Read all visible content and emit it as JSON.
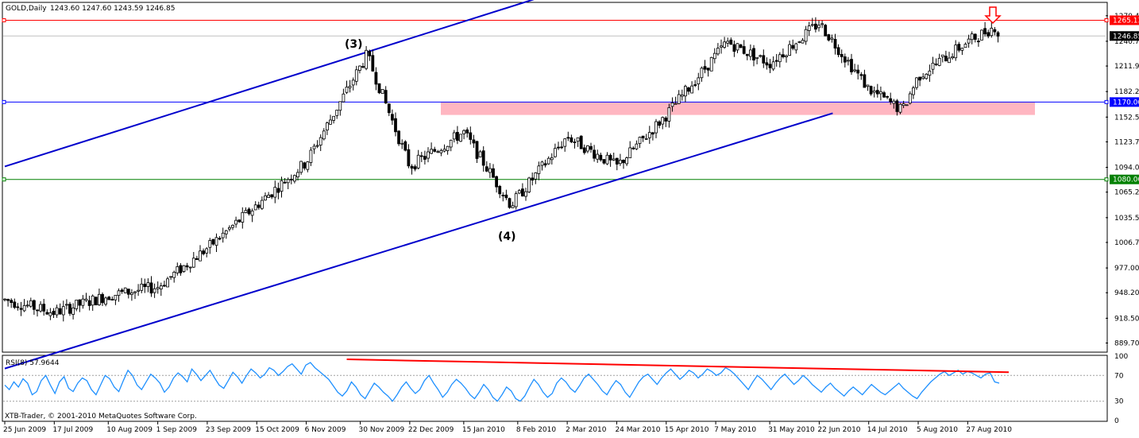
{
  "header": {
    "symbol": "GOLD,Daily",
    "ohlc": "1243.60 1247.60 1243.59 1246.85"
  },
  "rsi_header": {
    "label": "RSI(8) 57.9644"
  },
  "copyright": "XTB-Trader, © 2001-2010 MetaQuotes Software Corp.",
  "annotations": {
    "wave3": "(3)",
    "wave4": "(4)"
  },
  "colors": {
    "channel": "#0000cc",
    "resistance_line": "#ff0000",
    "support_line": "#0000ff",
    "low_line": "#008000",
    "zone": "#ffb6c1",
    "rsi_line": "#1e90ff",
    "rsi_trend": "#ff0000",
    "arrow": "#ff0000",
    "price_tag_current": "#000000"
  },
  "chart_data": [
    {
      "type": "candlestick",
      "title": "GOLD,Daily",
      "ylim": [
        880,
        1285
      ],
      "y_ticks": [
        "1270.40",
        "1240.70",
        "1211.90",
        "1182.20",
        "1152.50",
        "1123.70",
        "1094.00",
        "1065.20",
        "1035.50",
        "1006.70",
        "977.00",
        "948.20",
        "918.50",
        "889.70"
      ],
      "x_ticks": [
        "25 Jun 2009",
        "17 Jul 2009",
        "10 Aug 2009",
        "1 Sep 2009",
        "23 Sep 2009",
        "15 Oct 2009",
        "6 Nov 2009",
        "30 Nov 2009",
        "22 Dec 2009",
        "15 Jan 2010",
        "8 Feb 2010",
        "2 Mar 2010",
        "24 Mar 2010",
        "15 Apr 2010",
        "7 May 2010",
        "31 May 2010",
        "22 Jun 2010",
        "14 Jul 2010",
        "5 Aug 2010",
        "27 Aug 2010"
      ],
      "price_levels": [
        {
          "name": "resistance",
          "value": 1265.13,
          "label": "1265.13"
        },
        {
          "name": "current",
          "value": 1246.85,
          "label": "1246.85"
        },
        {
          "name": "support",
          "value": 1170.0,
          "label": "1170.00"
        },
        {
          "name": "low",
          "value": 1080.0,
          "label": "1080.00"
        }
      ],
      "zone": {
        "from": 1155,
        "to": 1170
      },
      "channel_upper": [
        {
          "date": "25 Jun 2009",
          "value": 1095
        },
        {
          "date": "24 Nov 2009",
          "value": 1230
        },
        {
          "date": "12 Mar 2010",
          "value": 1310
        }
      ],
      "channel_lower": [
        {
          "date": "25 Jun 2009",
          "value": 860
        },
        {
          "date": "4 Feb 2010",
          "value": 1042
        },
        {
          "date": "28 Jun 2010",
          "value": 1157
        }
      ],
      "key_points": [
        {
          "date": "25 Jun 2009",
          "value": 940
        },
        {
          "date": "17 Jul 2009",
          "value": 925
        },
        {
          "date": "10 Aug 2009",
          "value": 945
        },
        {
          "date": "1 Sep 2009",
          "value": 955
        },
        {
          "date": "23 Sep 2009",
          "value": 1000
        },
        {
          "date": "15 Oct 2009",
          "value": 1050
        },
        {
          "date": "6 Nov 2009",
          "value": 1100
        },
        {
          "date": "3 Dec 2009",
          "value": 1225
        },
        {
          "date": "22 Dec 2009",
          "value": 1095
        },
        {
          "date": "15 Jan 2010",
          "value": 1135
        },
        {
          "date": "5 Feb 2010",
          "value": 1050
        },
        {
          "date": "2 Mar 2010",
          "value": 1130
        },
        {
          "date": "24 Mar 2010",
          "value": 1095
        },
        {
          "date": "15 Apr 2010",
          "value": 1155
        },
        {
          "date": "12 May 2010",
          "value": 1240
        },
        {
          "date": "31 May 2010",
          "value": 1215
        },
        {
          "date": "22 Jun 2010",
          "value": 1262
        },
        {
          "date": "14 Jul 2010",
          "value": 1185
        },
        {
          "date": "29 Jul 2010",
          "value": 1160
        },
        {
          "date": "5 Aug 2010",
          "value": 1200
        },
        {
          "date": "27 Aug 2010",
          "value": 1240
        },
        {
          "date": "8 Sep 2010",
          "value": 1258
        },
        {
          "date": "10 Sep 2010",
          "value": 1246.85
        }
      ]
    },
    {
      "type": "line",
      "title": "RSI(8) 57.9644",
      "ylim": [
        0,
        100
      ],
      "y_ticks": [
        "100",
        "70",
        "30",
        "0"
      ],
      "levels": [
        70,
        30
      ],
      "series": [
        {
          "values": [
            55,
            48,
            60,
            52,
            65,
            58,
            40,
            45,
            62,
            70,
            55,
            42,
            60,
            68,
            50,
            45,
            58,
            66,
            62,
            48,
            40,
            55,
            70,
            65,
            52,
            45,
            62,
            78,
            70,
            55,
            48,
            60,
            72,
            66,
            58,
            44,
            52,
            66,
            74,
            68,
            60,
            80,
            72,
            62,
            70,
            78,
            66,
            55,
            50,
            62,
            75,
            68,
            58,
            70,
            80,
            74,
            66,
            72,
            82,
            78,
            70,
            76,
            84,
            88,
            80,
            72,
            86,
            90,
            82,
            76,
            70,
            64,
            54,
            44,
            38,
            46,
            60,
            52,
            40,
            34,
            46,
            58,
            52,
            44,
            38,
            30,
            40,
            52,
            60,
            50,
            42,
            48,
            62,
            70,
            58,
            48,
            36,
            44,
            56,
            64,
            58,
            50,
            40,
            34,
            44,
            56,
            48,
            36,
            30,
            40,
            52,
            46,
            34,
            30,
            38,
            52,
            64,
            56,
            44,
            36,
            42,
            58,
            66,
            60,
            50,
            44,
            54,
            66,
            72,
            64,
            56,
            46,
            40,
            52,
            62,
            56,
            44,
            36,
            48,
            60,
            68,
            72,
            64,
            56,
            66,
            74,
            80,
            72,
            64,
            70,
            78,
            74,
            66,
            72,
            80,
            76,
            70,
            74,
            82,
            78,
            72,
            64,
            56,
            48,
            60,
            70,
            64,
            56,
            48,
            58,
            66,
            72,
            64,
            56,
            62,
            70,
            64,
            56,
            50,
            44,
            52,
            58,
            50,
            44,
            38,
            46,
            52,
            46,
            40,
            48,
            56,
            50,
            44,
            40,
            46,
            52,
            58,
            50,
            44,
            38,
            34,
            44,
            52,
            60,
            66,
            72,
            76,
            70,
            74,
            78,
            72,
            76,
            74,
            70,
            66,
            72,
            74,
            60,
            58
          ]
        }
      ],
      "trendline": [
        {
          "date": "24 Nov 2009",
          "value": 95
        },
        {
          "date": "10 Sep 2010",
          "value": 75
        }
      ]
    }
  ]
}
